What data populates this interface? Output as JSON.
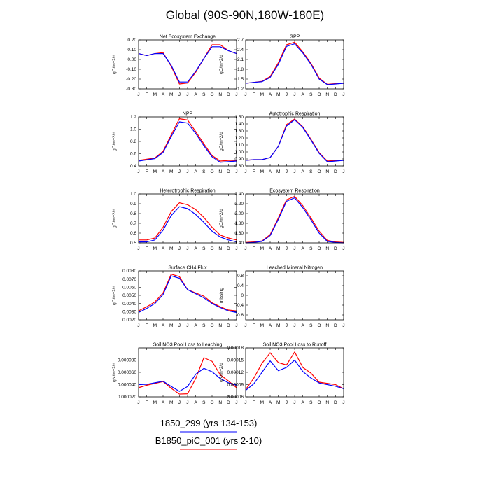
{
  "title": "Global (90S-90N,180W-180E)",
  "months": [
    "J",
    "F",
    "M",
    "A",
    "M",
    "J",
    "J",
    "A",
    "S",
    "O",
    "N",
    "D",
    "J"
  ],
  "legend": [
    {
      "label": "1850_299 (yrs 134-153)",
      "color": "#0000ff"
    },
    {
      "label": "B1850_piC_001 (yrs 2-10)",
      "color": "#ff0000"
    }
  ],
  "chart_data": [
    {
      "type": "line",
      "title": "Net Ecosystem Exchange",
      "ylabel": "gC/m^2/d",
      "ylim": [
        -0.3,
        0.2
      ],
      "yticks": [
        "-0.30",
        "-0.20",
        "-0.10",
        "0.00",
        "0.10",
        "0.20"
      ],
      "series": [
        {
          "name": "1850_299 (yrs 134-153)",
          "color": "#0000ff",
          "values": [
            0.06,
            0.04,
            0.06,
            0.06,
            -0.06,
            -0.23,
            -0.23,
            -0.12,
            0.01,
            0.13,
            0.13,
            0.09,
            0.06
          ]
        },
        {
          "name": "B1850_piC_001 (yrs 2-10)",
          "color": "#ff0000",
          "values": [
            0.06,
            0.04,
            0.06,
            0.07,
            -0.07,
            -0.25,
            -0.24,
            -0.13,
            0.01,
            0.15,
            0.15,
            0.09,
            0.06
          ]
        }
      ]
    },
    {
      "type": "line",
      "title": "GPP",
      "ylabel": "gC/m^2/d",
      "ylim": [
        1.2,
        2.7
      ],
      "yticks": [
        "1.2",
        "1.5",
        "1.8",
        "2.1",
        "2.4",
        "2.7"
      ],
      "series": [
        {
          "name": "1850_299 (yrs 134-153)",
          "color": "#0000ff",
          "values": [
            1.37,
            1.4,
            1.42,
            1.55,
            1.95,
            2.5,
            2.58,
            2.3,
            1.95,
            1.5,
            1.33,
            1.35,
            1.37
          ]
        },
        {
          "name": "B1850_piC_001 (yrs 2-10)",
          "color": "#ff0000",
          "values": [
            1.37,
            1.4,
            1.43,
            1.58,
            2.0,
            2.55,
            2.63,
            2.33,
            1.98,
            1.53,
            1.34,
            1.36,
            1.37
          ]
        }
      ]
    },
    {
      "type": "line",
      "title": "NPP",
      "ylabel": "gC/m^2/d",
      "ylim": [
        0.4,
        1.2
      ],
      "yticks": [
        "0.4",
        "0.6",
        "0.8",
        "1.0",
        "1.2"
      ],
      "series": [
        {
          "name": "1850_299 (yrs 134-153)",
          "color": "#0000ff",
          "values": [
            0.48,
            0.5,
            0.52,
            0.62,
            0.88,
            1.12,
            1.1,
            0.93,
            0.73,
            0.55,
            0.46,
            0.47,
            0.48
          ]
        },
        {
          "name": "B1850_piC_001 (yrs 2-10)",
          "color": "#ff0000",
          "values": [
            0.49,
            0.51,
            0.53,
            0.64,
            0.91,
            1.17,
            1.15,
            0.96,
            0.76,
            0.57,
            0.48,
            0.49,
            0.49
          ]
        }
      ]
    },
    {
      "type": "line",
      "title": "Autotrophic Respiration",
      "ylabel": "gC/m^2/d",
      "ylim": [
        0.8,
        1.5
      ],
      "yticks": [
        "0.80",
        "0.90",
        "1.00",
        "1.10",
        "1.20",
        "1.30",
        "1.40",
        "1.50"
      ],
      "series": [
        {
          "name": "1850_299 (yrs 134-153)",
          "color": "#0000ff",
          "values": [
            0.88,
            0.89,
            0.89,
            0.92,
            1.08,
            1.37,
            1.46,
            1.35,
            1.17,
            0.98,
            0.86,
            0.87,
            0.88
          ]
        },
        {
          "name": "B1850_piC_001 (yrs 2-10)",
          "color": "#ff0000",
          "values": [
            0.88,
            0.89,
            0.89,
            0.92,
            1.08,
            1.39,
            1.47,
            1.36,
            1.18,
            0.99,
            0.87,
            0.88,
            0.88
          ]
        }
      ]
    },
    {
      "type": "line",
      "title": "Heterotrophic Respiration",
      "ylabel": "gC/m^2/d",
      "ylim": [
        0.5,
        1.0
      ],
      "yticks": [
        "0.5",
        "0.6",
        "0.7",
        "0.8",
        "0.9",
        "1.0"
      ],
      "series": [
        {
          "name": "1850_299 (yrs 134-153)",
          "color": "#0000ff",
          "values": [
            0.51,
            0.51,
            0.53,
            0.63,
            0.78,
            0.87,
            0.85,
            0.79,
            0.71,
            0.62,
            0.56,
            0.53,
            0.51
          ]
        },
        {
          "name": "B1850_piC_001 (yrs 2-10)",
          "color": "#ff0000",
          "values": [
            0.53,
            0.53,
            0.55,
            0.66,
            0.82,
            0.91,
            0.89,
            0.84,
            0.76,
            0.66,
            0.58,
            0.55,
            0.53
          ]
        }
      ]
    },
    {
      "type": "line",
      "title": "Ecosystem Respiration",
      "ylabel": "gC/m^2/d",
      "ylim": [
        1.4,
        2.4
      ],
      "yticks": [
        "1.40",
        "1.60",
        "1.80",
        "2.00",
        "2.20",
        "2.40"
      ],
      "series": [
        {
          "name": "1850_299 (yrs 134-153)",
          "color": "#0000ff",
          "values": [
            1.4,
            1.41,
            1.43,
            1.55,
            1.88,
            2.25,
            2.32,
            2.12,
            1.87,
            1.6,
            1.43,
            1.41,
            1.4
          ]
        },
        {
          "name": "B1850_piC_001 (yrs 2-10)",
          "color": "#ff0000",
          "values": [
            1.41,
            1.42,
            1.44,
            1.57,
            1.91,
            2.28,
            2.35,
            2.16,
            1.91,
            1.64,
            1.45,
            1.42,
            1.41
          ]
        }
      ]
    },
    {
      "type": "line",
      "title": "Surface CH4 Flux",
      "ylabel": "gC/m^2/d",
      "ylim": [
        0.002,
        0.008
      ],
      "yticks": [
        "0.0020",
        "0.0030",
        "0.0040",
        "0.0050",
        "0.0060",
        "0.0070",
        "0.0080"
      ],
      "series": [
        {
          "name": "1850_299 (yrs 134-153)",
          "color": "#0000ff",
          "values": [
            0.0029,
            0.0034,
            0.004,
            0.0051,
            0.0074,
            0.0071,
            0.0057,
            0.0052,
            0.0047,
            0.004,
            0.0035,
            0.0031,
            0.0029
          ]
        },
        {
          "name": "B1850_piC_001 (yrs 2-10)",
          "color": "#ff0000",
          "values": [
            0.0031,
            0.0036,
            0.0042,
            0.0053,
            0.0076,
            0.0073,
            0.0057,
            0.0053,
            0.0049,
            0.0041,
            0.0036,
            0.0032,
            0.0031
          ]
        }
      ]
    },
    {
      "type": "line",
      "title": "Leached Mineral Nitrogen",
      "ylabel": "missing",
      "ylim": [
        -1.0,
        1.0
      ],
      "yticks": [
        "-0.8",
        "-0.4",
        "0",
        "0.4",
        "0.8"
      ],
      "series": []
    },
    {
      "type": "line",
      "title": "Soil NO3 Pool Loss to Leaching",
      "ylabel": "gN/m^2/d",
      "ylim": [
        2e-05,
        0.0001
      ],
      "yticks": [
        "0.000020",
        "0.000040",
        "0.000060",
        "0.000080"
      ],
      "series": [
        {
          "name": "1850_299 (yrs 134-153)",
          "color": "#0000ff",
          "values": [
            4e-05,
            4.05e-05,
            4.3e-05,
            4.55e-05,
            3.7e-05,
            2.9e-05,
            3.7e-05,
            5.7e-05,
            6.65e-05,
            6.1e-05,
            5e-05,
            4.3e-05,
            3.9e-05
          ]
        },
        {
          "name": "B1850_piC_001 (yrs 2-10)",
          "color": "#ff0000",
          "values": [
            3.5e-05,
            3.9e-05,
            4.2e-05,
            4.5e-05,
            3.4e-05,
            2.45e-05,
            2.5e-05,
            5e-05,
            8.4e-05,
            7.8e-05,
            5.6e-05,
            4.6e-05,
            3.5e-05
          ]
        }
      ]
    },
    {
      "type": "line",
      "title": "Soil NO3 Pool Loss to Runoff",
      "ylabel": "gN/m^2/d",
      "ylim": [
        6e-05,
        0.00018
      ],
      "yticks": [
        "0.00006",
        "0.00009",
        "0.00012",
        "0.00015",
        "0.00018"
      ],
      "series": [
        {
          "name": "1850_299 (yrs 134-153)",
          "color": "#0000ff",
          "values": [
            7.6e-05,
            9.2e-05,
            0.00012,
            0.000148,
            0.000124,
            0.000132,
            0.00015,
            0.000122,
            0.000106,
            9.4e-05,
            9e-05,
            8.6e-05,
            8e-05
          ]
        },
        {
          "name": "B1850_piC_001 (yrs 2-10)",
          "color": "#ff0000",
          "values": [
            7.8e-05,
            0.000106,
            0.000142,
            0.000168,
            0.000144,
            0.000138,
            0.00017,
            0.000132,
            0.000118,
            9.6e-05,
            9.3e-05,
            9e-05,
            8e-05
          ]
        }
      ]
    }
  ]
}
